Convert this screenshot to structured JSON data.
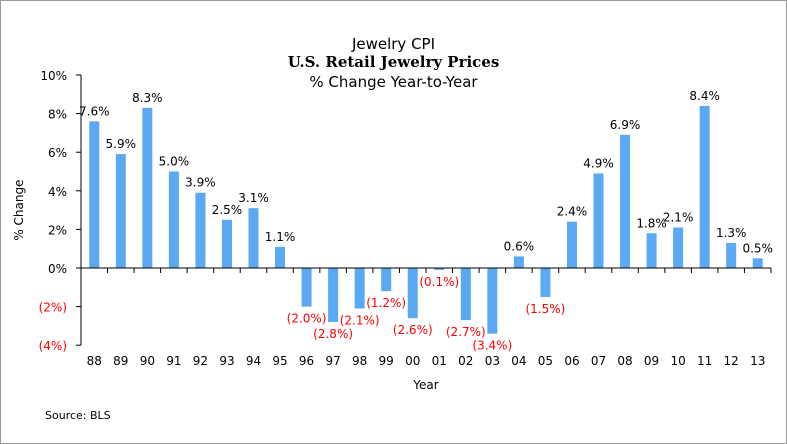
{
  "chart_data": {
    "type": "bar",
    "title": "Jewelry CPI",
    "subtitle": "U.S. Retail Jewelry Prices",
    "subtitle2": "% Change Year-to-Year",
    "xlabel": "Year",
    "ylabel": "% Change",
    "ylim": [
      -4,
      10
    ],
    "yticks": [
      10,
      8,
      6,
      4,
      2,
      0,
      -2,
      -4
    ],
    "ytick_labels": [
      "10%",
      "8%",
      "6%",
      "4%",
      "2%",
      "0%",
      "(2%)",
      "(4%)"
    ],
    "grid": false,
    "legend": "none",
    "categories": [
      "88",
      "89",
      "90",
      "91",
      "92",
      "93",
      "94",
      "95",
      "96",
      "97",
      "98",
      "99",
      "00",
      "01",
      "02",
      "03",
      "04",
      "05",
      "06",
      "07",
      "08",
      "09",
      "10",
      "11",
      "12",
      "13"
    ],
    "values": [
      7.6,
      5.9,
      8.3,
      5.0,
      3.9,
      2.5,
      3.1,
      1.1,
      -2.0,
      -2.8,
      -2.1,
      -1.2,
      -2.6,
      -0.1,
      -2.7,
      -3.4,
      0.6,
      -1.5,
      2.4,
      4.9,
      6.9,
      1.8,
      2.1,
      8.4,
      1.3,
      0.5
    ],
    "data_labels": [
      "7.6%",
      "5.9%",
      "8.3%",
      "5.0%",
      "3.9%",
      "2.5%",
      "3.1%",
      "1.1%",
      "(2.0%)",
      "(2.8%)",
      "(2.1%)",
      "(1.2%)",
      "(2.6%)",
      "(0.1%)",
      "(2.7%)",
      "(3.4%)",
      "0.6%",
      "(1.5%)",
      "2.4%",
      "4.9%",
      "6.9%",
      "1.8%",
      "2.1%",
      "8.4%",
      "1.3%",
      "0.5%"
    ],
    "colors": {
      "bar": "#5aa9f2",
      "positive_label": "#000000",
      "negative_label": "#ff0000",
      "negative_tick": "#ff0000",
      "axis": "#000000"
    }
  },
  "source": "Source:  BLS"
}
